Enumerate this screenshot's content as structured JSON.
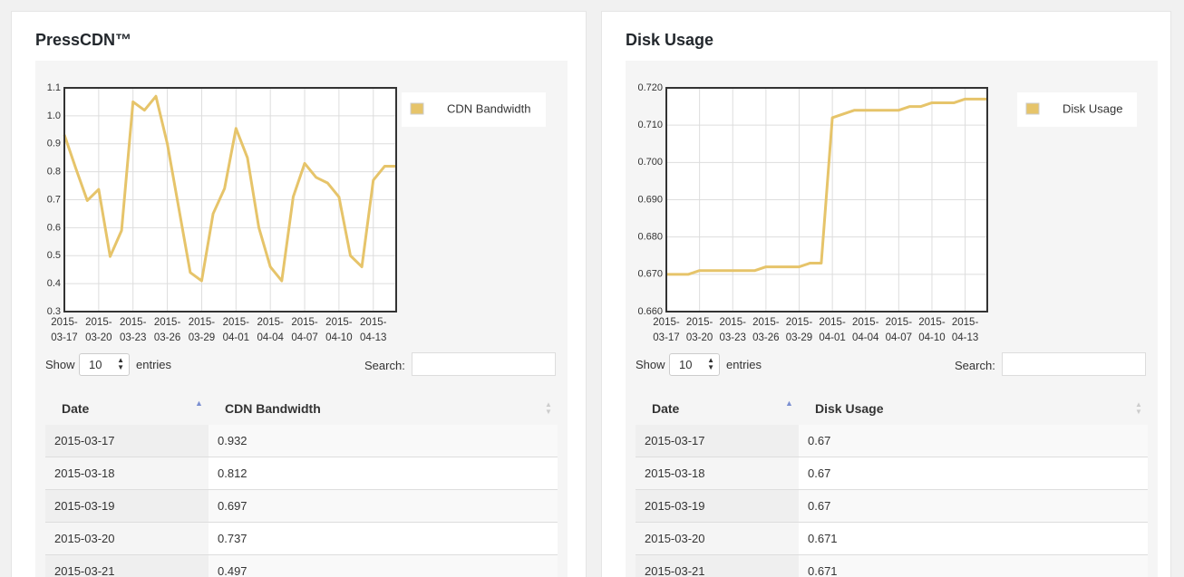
{
  "panels": [
    {
      "title": "PressCDN™",
      "show": "Show",
      "page_size": "10",
      "entries": "entries",
      "search": "Search:",
      "date_column": "Date"
    },
    {
      "title": "Disk Usage",
      "show": "Show",
      "page_size": "10",
      "entries": "entries",
      "search": "Search:",
      "date_column": "Date"
    }
  ],
  "chart_data": [
    {
      "type": "line",
      "x": [
        "2015-03-17",
        "2015-03-18",
        "2015-03-19",
        "2015-03-20",
        "2015-03-21",
        "2015-03-22",
        "2015-03-23",
        "2015-03-24",
        "2015-03-25",
        "2015-03-26",
        "2015-03-27",
        "2015-03-28",
        "2015-03-29",
        "2015-03-30",
        "2015-03-31",
        "2015-04-01",
        "2015-04-02",
        "2015-04-03",
        "2015-04-04",
        "2015-04-05",
        "2015-04-06",
        "2015-04-07",
        "2015-04-08",
        "2015-04-09",
        "2015-04-10",
        "2015-04-11",
        "2015-04-12",
        "2015-04-13",
        "2015-04-14",
        "2015-04-15"
      ],
      "series": [
        {
          "name": "CDN Bandwidth",
          "color": "#e6c46a",
          "values": [
            0.932,
            0.812,
            0.697,
            0.737,
            0.497,
            0.59,
            1.05,
            1.02,
            1.07,
            0.9,
            0.67,
            0.44,
            0.41,
            0.65,
            0.74,
            0.955,
            0.85,
            0.6,
            0.46,
            0.41,
            0.71,
            0.83,
            0.78,
            0.76,
            0.71,
            0.5,
            0.46,
            0.77,
            0.82,
            0.82
          ]
        }
      ],
      "xlim": [
        "2015-03-17",
        "2015-04-15"
      ],
      "xticks": [
        "2015-03-17",
        "2015-03-20",
        "2015-03-23",
        "2015-03-26",
        "2015-03-29",
        "2015-04-01",
        "2015-04-04",
        "2015-04-07",
        "2015-04-10",
        "2015-04-13"
      ],
      "ylim": [
        0.3,
        1.1
      ],
      "yticks": [
        0.3,
        0.4,
        0.5,
        0.6,
        0.7,
        0.8,
        0.9,
        {
          "value": 1,
          "label": "1.0"
        },
        1.1
      ],
      "grid": true,
      "legend": "right"
    },
    {
      "type": "line",
      "x": [
        "2015-03-17",
        "2015-03-18",
        "2015-03-19",
        "2015-03-20",
        "2015-03-21",
        "2015-03-22",
        "2015-03-23",
        "2015-03-24",
        "2015-03-25",
        "2015-03-26",
        "2015-03-27",
        "2015-03-28",
        "2015-03-29",
        "2015-03-30",
        "2015-03-31",
        "2015-04-01",
        "2015-04-02",
        "2015-04-03",
        "2015-04-04",
        "2015-04-05",
        "2015-04-06",
        "2015-04-07",
        "2015-04-08",
        "2015-04-09",
        "2015-04-10",
        "2015-04-11",
        "2015-04-12",
        "2015-04-13",
        "2015-04-14",
        "2015-04-15"
      ],
      "series": [
        {
          "name": "Disk Usage",
          "color": "#e6c46a",
          "values": [
            0.67,
            0.67,
            0.67,
            0.671,
            0.671,
            0.671,
            0.671,
            0.671,
            0.671,
            0.672,
            0.672,
            0.672,
            0.672,
            0.673,
            0.673,
            0.712,
            0.713,
            0.714,
            0.714,
            0.714,
            0.714,
            0.714,
            0.715,
            0.715,
            0.716,
            0.716,
            0.716,
            0.717,
            0.717,
            0.717
          ]
        }
      ],
      "xlim": [
        "2015-03-17",
        "2015-04-15"
      ],
      "xticks": [
        "2015-03-17",
        "2015-03-20",
        "2015-03-23",
        "2015-03-26",
        "2015-03-29",
        "2015-04-01",
        "2015-04-04",
        "2015-04-07",
        "2015-04-10",
        "2015-04-13"
      ],
      "ylim": [
        0.66,
        0.72
      ],
      "yticks": [
        {
          "value": 0.66,
          "label": "0.660"
        },
        {
          "value": 0.67,
          "label": "0.670"
        },
        {
          "value": 0.68,
          "label": "0.680"
        },
        {
          "value": 0.69,
          "label": "0.690"
        },
        {
          "value": 0.7,
          "label": "0.700"
        },
        {
          "value": 0.71,
          "label": "0.710"
        },
        {
          "value": 0.72,
          "label": "0.720"
        }
      ],
      "grid": true,
      "legend": "right"
    }
  ]
}
